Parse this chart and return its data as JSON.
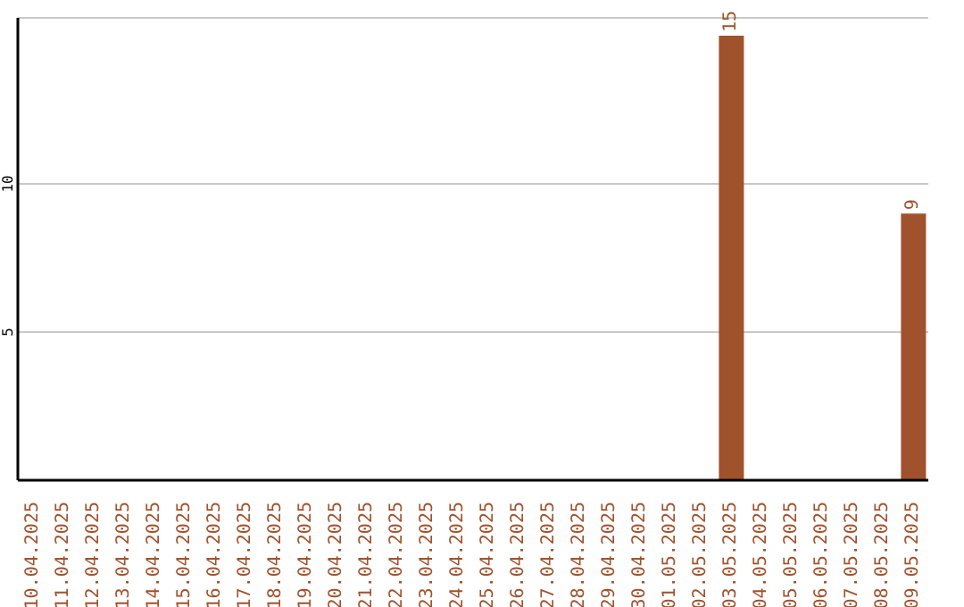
{
  "chart_data": {
    "type": "bar",
    "categories": [
      "10.04.2025",
      "11.04.2025",
      "12.04.2025",
      "13.04.2025",
      "14.04.2025",
      "15.04.2025",
      "16.04.2025",
      "17.04.2025",
      "18.04.2025",
      "19.04.2025",
      "20.04.2025",
      "21.04.2025",
      "22.04.2025",
      "23.04.2025",
      "24.04.2025",
      "25.04.2025",
      "26.04.2025",
      "27.04.2025",
      "28.04.2025",
      "29.04.2025",
      "30.04.2025",
      "01.05.2025",
      "02.05.2025",
      "03.05.2025",
      "04.05.2025",
      "05.05.2025",
      "06.05.2025",
      "07.05.2025",
      "08.05.2025",
      "09.05.2025"
    ],
    "values": [
      null,
      null,
      null,
      null,
      null,
      null,
      null,
      null,
      null,
      null,
      null,
      null,
      null,
      null,
      null,
      null,
      null,
      null,
      null,
      null,
      null,
      null,
      null,
      15,
      null,
      null,
      null,
      null,
      null,
      9
    ],
    "value_labels": [
      null,
      null,
      null,
      null,
      null,
      null,
      null,
      null,
      null,
      null,
      null,
      null,
      null,
      null,
      null,
      null,
      null,
      null,
      null,
      null,
      null,
      null,
      null,
      "15",
      null,
      null,
      null,
      null,
      null,
      "9"
    ],
    "color": "#a0522d",
    "ylim": [
      0,
      15.6
    ],
    "yticks": [
      5,
      10
    ],
    "grid": "y"
  }
}
